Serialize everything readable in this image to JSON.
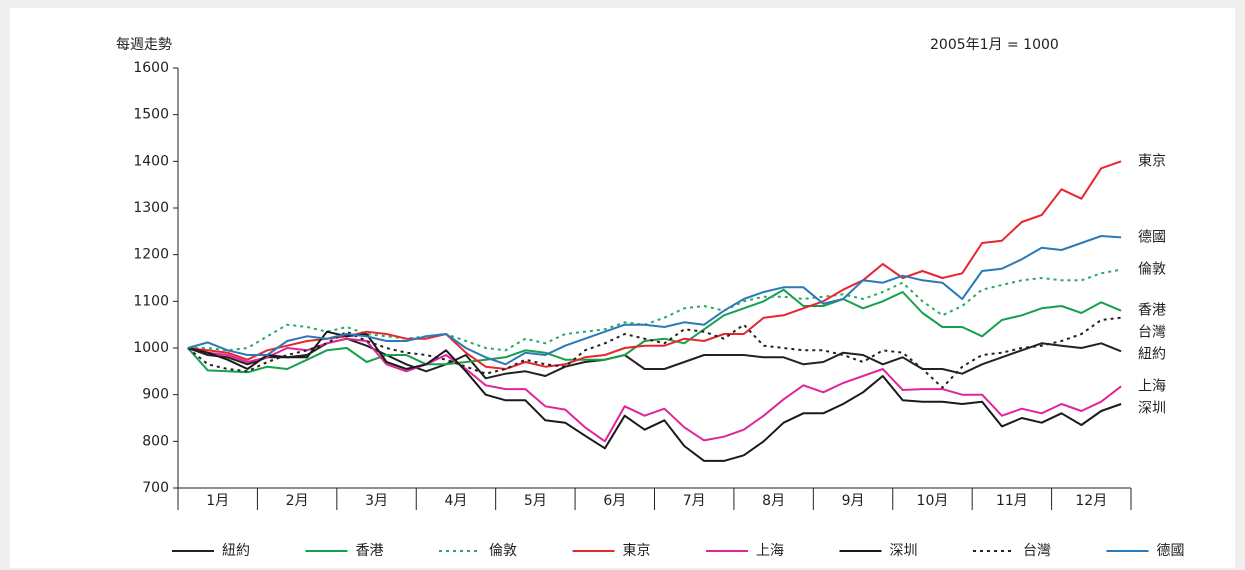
{
  "chart_data": {
    "type": "line",
    "title": "每週走勢",
    "note": "2005年1月 = 1000",
    "categories": [
      null,
      "1月",
      null,
      null,
      null,
      "2月",
      null,
      null,
      null,
      "3月",
      null,
      null,
      null,
      "4月",
      null,
      null,
      null,
      "5月",
      null,
      null,
      null,
      "6月",
      null,
      null,
      null,
      "7月",
      null,
      null,
      null,
      "8月",
      null,
      null,
      null,
      "9月",
      null,
      null,
      null,
      "10月",
      null,
      null,
      null,
      "11月",
      null,
      null,
      null,
      "12月",
      null,
      null
    ],
    "ylim": [
      700,
      1600
    ],
    "yticks": [
      700,
      800,
      900,
      1000,
      1100,
      1200,
      1300,
      1400,
      1500,
      1600
    ],
    "grid": false,
    "legend": "bottom",
    "series": [
      {
        "name": "紐約",
        "color": "#222222",
        "dashed": false,
        "values": [
          1000,
          985,
          980,
          965,
          980,
          980,
          985,
          1010,
          1020,
          1005,
          985,
          965,
          950,
          965,
          985,
          935,
          945,
          950,
          940,
          960,
          970,
          975,
          985,
          955,
          955,
          970,
          985,
          985,
          985,
          980,
          980,
          965,
          970,
          990,
          985,
          965,
          980,
          955,
          955,
          945,
          965,
          980,
          995,
          1010,
          1005,
          1000,
          1010,
          993
        ]
      },
      {
        "name": "香港",
        "color": "#17a04c",
        "dashed": false,
        "values": [
          1000,
          952,
          950,
          948,
          960,
          955,
          975,
          995,
          1000,
          970,
          985,
          985,
          965,
          965,
          970,
          975,
          980,
          995,
          990,
          975,
          975,
          975,
          985,
          1015,
          1020,
          1010,
          1040,
          1070,
          1085,
          1100,
          1125,
          1090,
          1090,
          1105,
          1085,
          1100,
          1120,
          1075,
          1045,
          1045,
          1025,
          1060,
          1070,
          1085,
          1090,
          1075,
          1098,
          1080
        ]
      },
      {
        "name": "倫敦",
        "color": "#2aa860",
        "dashed": true,
        "values": [
          1000,
          1000,
          995,
          1000,
          1025,
          1050,
          1045,
          1035,
          1045,
          1030,
          1025,
          1020,
          1025,
          1030,
          1015,
          1000,
          995,
          1020,
          1010,
          1030,
          1035,
          1040,
          1055,
          1050,
          1065,
          1085,
          1090,
          1080,
          1100,
          1110,
          1110,
          1105,
          1110,
          1115,
          1105,
          1120,
          1140,
          1100,
          1070,
          1090,
          1125,
          1135,
          1145,
          1150,
          1145,
          1145,
          1160,
          1168
        ]
      },
      {
        "name": "東京",
        "color": "#e8262f",
        "dashed": false,
        "values": [
          1000,
          995,
          990,
          975,
          995,
          1005,
          1015,
          1020,
          1025,
          1035,
          1030,
          1020,
          1020,
          1030,
          990,
          960,
          955,
          970,
          960,
          965,
          980,
          985,
          1000,
          1005,
          1005,
          1020,
          1015,
          1030,
          1030,
          1065,
          1070,
          1085,
          1100,
          1125,
          1145,
          1180,
          1150,
          1165,
          1150,
          1160,
          1225,
          1230,
          1270,
          1285,
          1340,
          1320,
          1385,
          1400
        ]
      },
      {
        "name": "上海",
        "color": "#e0259a",
        "dashed": false,
        "values": [
          1000,
          990,
          985,
          970,
          980,
          1000,
          995,
          1010,
          1020,
          1015,
          965,
          950,
          965,
          985,
          955,
          920,
          912,
          912,
          875,
          868,
          830,
          800,
          875,
          855,
          870,
          830,
          802,
          810,
          825,
          855,
          890,
          920,
          905,
          925,
          940,
          955,
          910,
          912,
          912,
          900,
          900,
          855,
          870,
          860,
          880,
          865,
          885,
          918
        ]
      },
      {
        "name": "深圳",
        "color": "#1a1a1a",
        "dashed": false,
        "values": [
          1000,
          990,
          975,
          955,
          985,
          980,
          980,
          1035,
          1025,
          1030,
          970,
          955,
          965,
          995,
          950,
          900,
          888,
          888,
          845,
          840,
          812,
          785,
          855,
          825,
          845,
          790,
          758,
          758,
          770,
          800,
          840,
          860,
          860,
          880,
          905,
          940,
          888,
          885,
          885,
          880,
          885,
          832,
          850,
          840,
          860,
          835,
          865,
          880
        ]
      },
      {
        "name": "台灣",
        "color": "#222222",
        "dashed": true,
        "values": [
          1000,
          965,
          955,
          950,
          970,
          985,
          995,
          1010,
          1035,
          1015,
          1000,
          990,
          985,
          975,
          960,
          945,
          955,
          975,
          965,
          960,
          995,
          1010,
          1030,
          1020,
          1010,
          1040,
          1035,
          1020,
          1050,
          1005,
          1000,
          995,
          995,
          985,
          970,
          995,
          990,
          955,
          915,
          960,
          985,
          990,
          1000,
          1005,
          1015,
          1030,
          1060,
          1065
        ]
      },
      {
        "name": "德國",
        "color": "#2a7ab8",
        "dashed": false,
        "values": [
          1000,
          1012,
          995,
          985,
          985,
          1015,
          1025,
          1020,
          1030,
          1025,
          1015,
          1015,
          1025,
          1030,
          1000,
          980,
          965,
          990,
          985,
          1005,
          1020,
          1035,
          1050,
          1050,
          1045,
          1055,
          1050,
          1080,
          1105,
          1120,
          1130,
          1130,
          1095,
          1105,
          1145,
          1140,
          1155,
          1145,
          1140,
          1105,
          1165,
          1170,
          1190,
          1215,
          1210,
          1225,
          1240,
          1237
        ]
      }
    ]
  }
}
